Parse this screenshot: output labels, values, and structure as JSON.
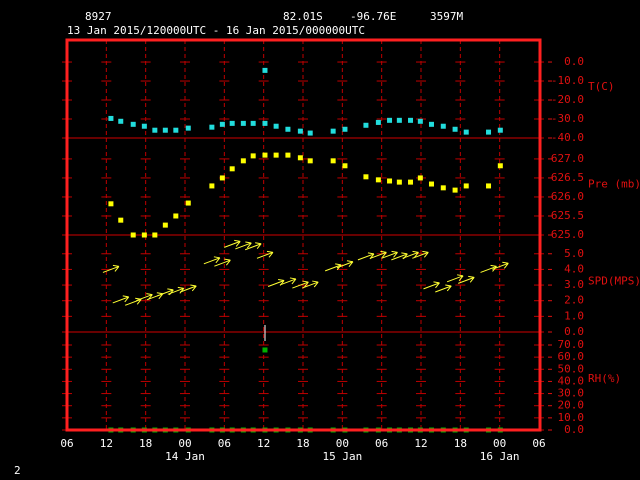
{
  "header": {
    "station": "8927",
    "lat": "82.01S",
    "lon": "-96.76E",
    "elev": "3597M",
    "period": "13 Jan 2015/120000UTC - 16 Jan 2015/000000UTC"
  },
  "footer": "2",
  "chart_data": [
    {
      "type": "scatter",
      "label": "T(C)",
      "ylim": [
        -40,
        11.6
      ],
      "yticks": [
        {
          "value": 0,
          "label": "0.0"
        },
        {
          "value": -10,
          "label": "-10.0"
        },
        {
          "value": -20,
          "label": "-20.0"
        },
        {
          "value": -30,
          "label": "-30.0"
        },
        {
          "value": -40,
          "label": "-40.0"
        }
      ],
      "series": [
        {
          "color": "#22dddd",
          "x": [
            12.7,
            14.2,
            16.1,
            17.8,
            19.4,
            21.0,
            22.6,
            24.5,
            28.1,
            29.7,
            31.2,
            32.9,
            34.4,
            36.2,
            37.9,
            39.7,
            41.6,
            43.1,
            46.6,
            48.4,
            51.6,
            53.5,
            55.2,
            56.7,
            58.4,
            59.9,
            61.6,
            63.4,
            65.2,
            66.9,
            70.3,
            72.1
          ],
          "values": [
            -29.7,
            -31.2,
            -32.8,
            -33.8,
            -35.9,
            -35.9,
            -35.9,
            -34.8,
            -34.3,
            -32.8,
            -32.3,
            -32.3,
            -32.3,
            -32.3,
            -33.8,
            -35.4,
            -36.4,
            -37.4,
            -36.4,
            -35.4,
            -33.3,
            -31.8,
            -30.7,
            -30.7,
            -30.7,
            -31.2,
            -32.8,
            -33.8,
            -35.4,
            -36.9,
            -36.9,
            -35.9
          ]
        },
        {
          "color": "#22dddd",
          "x": [
            36.2
          ],
          "values": [
            -4.4
          ]
        }
      ]
    },
    {
      "type": "scatter",
      "label": "Pre (mb)",
      "ylim": [
        625,
        627.55
      ],
      "yticks": [
        {
          "value": 627,
          "label": "627.0"
        },
        626.5,
        {
          "value": 626,
          "label": "626.0"
        },
        625.5,
        {
          "value": 625,
          "label": "625.0"
        }
      ],
      "series": [
        {
          "color": "#ffff00",
          "x": [
            12.7,
            14.2,
            16.1,
            17.8,
            19.4,
            21.0,
            22.6,
            24.5,
            28.1,
            29.7,
            31.2,
            32.9,
            34.4,
            36.2,
            37.9,
            39.7,
            41.6,
            43.1,
            46.6,
            48.4,
            51.6,
            53.5,
            55.2,
            56.7,
            58.4,
            59.9,
            61.6,
            63.4,
            65.2,
            66.9,
            70.3,
            72.1
          ],
          "values": [
            625.82,
            625.39,
            625.0,
            625.0,
            625.0,
            625.26,
            625.5,
            625.84,
            626.29,
            626.5,
            626.74,
            626.95,
            627.08,
            627.1,
            627.1,
            627.1,
            627.03,
            626.95,
            626.95,
            626.82,
            626.53,
            626.45,
            626.42,
            626.39,
            626.39,
            626.5,
            626.34,
            626.24,
            626.18,
            626.29,
            626.29,
            626.82
          ]
        }
      ]
    },
    {
      "type": "vector",
      "label": "SPD(MPS)",
      "ylim": [
        0,
        6.2
      ],
      "yticks": [
        {
          "value": 5,
          "label": "5.0"
        },
        {
          "value": 4,
          "label": "4.0"
        },
        {
          "value": 3,
          "label": "3.0"
        },
        {
          "value": 2,
          "label": "2.0"
        },
        {
          "value": 1,
          "label": "1.0"
        },
        {
          "value": 0,
          "label": "0.0"
        }
      ],
      "series": [
        {
          "color": "#ffff33",
          "x": [
            12.7,
            14.2,
            16.1,
            17.8,
            19.4,
            21.0,
            22.6,
            24.5,
            28.1,
            29.7,
            31.2,
            32.9,
            34.4,
            36.2,
            37.9,
            39.7,
            41.6,
            43.1,
            46.6,
            48.4,
            51.6,
            53.5,
            55.2,
            56.7,
            58.4,
            59.9,
            61.6,
            63.4,
            65.2,
            66.9,
            70.3,
            72.1
          ],
          "values": [
            4.0,
            2.05,
            1.9,
            2.2,
            2.25,
            2.5,
            2.6,
            2.75,
            4.55,
            4.4,
            5.6,
            5.5,
            5.45,
            4.9,
            3.1,
            3.2,
            3.0,
            3.0,
            4.1,
            4.3,
            4.8,
            4.9,
            4.9,
            4.8,
            4.9,
            4.9,
            2.95,
            2.75,
            3.4,
            3.3,
            4.0,
            4.2
          ]
        }
      ]
    },
    {
      "type": "scatter",
      "label": "RH(%)",
      "ylim": [
        0,
        80.7
      ],
      "yticks": [
        {
          "value": 70,
          "label": "70.0"
        },
        {
          "value": 60,
          "label": "60.0"
        },
        {
          "value": 50,
          "label": "50.0"
        },
        {
          "value": 40,
          "label": "40.0"
        },
        {
          "value": 30,
          "label": "30.0"
        },
        {
          "value": 20,
          "label": "20.0"
        },
        {
          "value": 10,
          "label": "10.0"
        },
        {
          "value": 0,
          "label": "0.0"
        }
      ],
      "xlim": [
        6,
        78
      ],
      "xticks": [
        {
          "value": 6,
          "label": "06"
        },
        {
          "value": 12,
          "label": "12"
        },
        {
          "value": 18,
          "label": "18"
        },
        {
          "value": 24,
          "label": "00"
        },
        {
          "value": 30,
          "label": "06"
        },
        {
          "value": 36,
          "label": "12"
        },
        {
          "value": 42,
          "label": "18"
        },
        {
          "value": 48,
          "label": "00"
        },
        {
          "value": 54,
          "label": "06"
        },
        {
          "value": 60,
          "label": "12"
        },
        {
          "value": 66,
          "label": "18"
        },
        {
          "value": 72,
          "label": "00"
        },
        {
          "value": 78,
          "label": "06"
        }
      ],
      "date_labels": [
        {
          "value": 24,
          "label": "14 Jan"
        },
        {
          "value": 48,
          "label": "15 Jan"
        },
        {
          "value": 72,
          "label": "16 Jan"
        }
      ],
      "series": [
        {
          "color": "#00b000",
          "x": [
            12.7,
            14.2,
            16.1,
            17.8,
            19.4,
            21.0,
            22.6,
            24.5,
            28.1,
            29.7,
            31.2,
            32.9,
            34.4,
            36.2,
            37.9,
            39.7,
            41.6,
            43.1,
            46.6,
            48.4,
            51.6,
            53.5,
            55.2,
            56.7,
            58.4,
            59.9,
            61.6,
            63.4,
            65.2,
            66.9,
            70.3,
            72.1
          ],
          "values": [
            0,
            0,
            0,
            0,
            0,
            0,
            0,
            0,
            0,
            0,
            0,
            0,
            0,
            0,
            0,
            0,
            0,
            0,
            0,
            0,
            0,
            0,
            0,
            0,
            0,
            0,
            0,
            0,
            0,
            0,
            0,
            0
          ]
        },
        {
          "color": "#00b000",
          "x": [
            36.2
          ],
          "values": [
            65.9
          ]
        }
      ]
    }
  ]
}
